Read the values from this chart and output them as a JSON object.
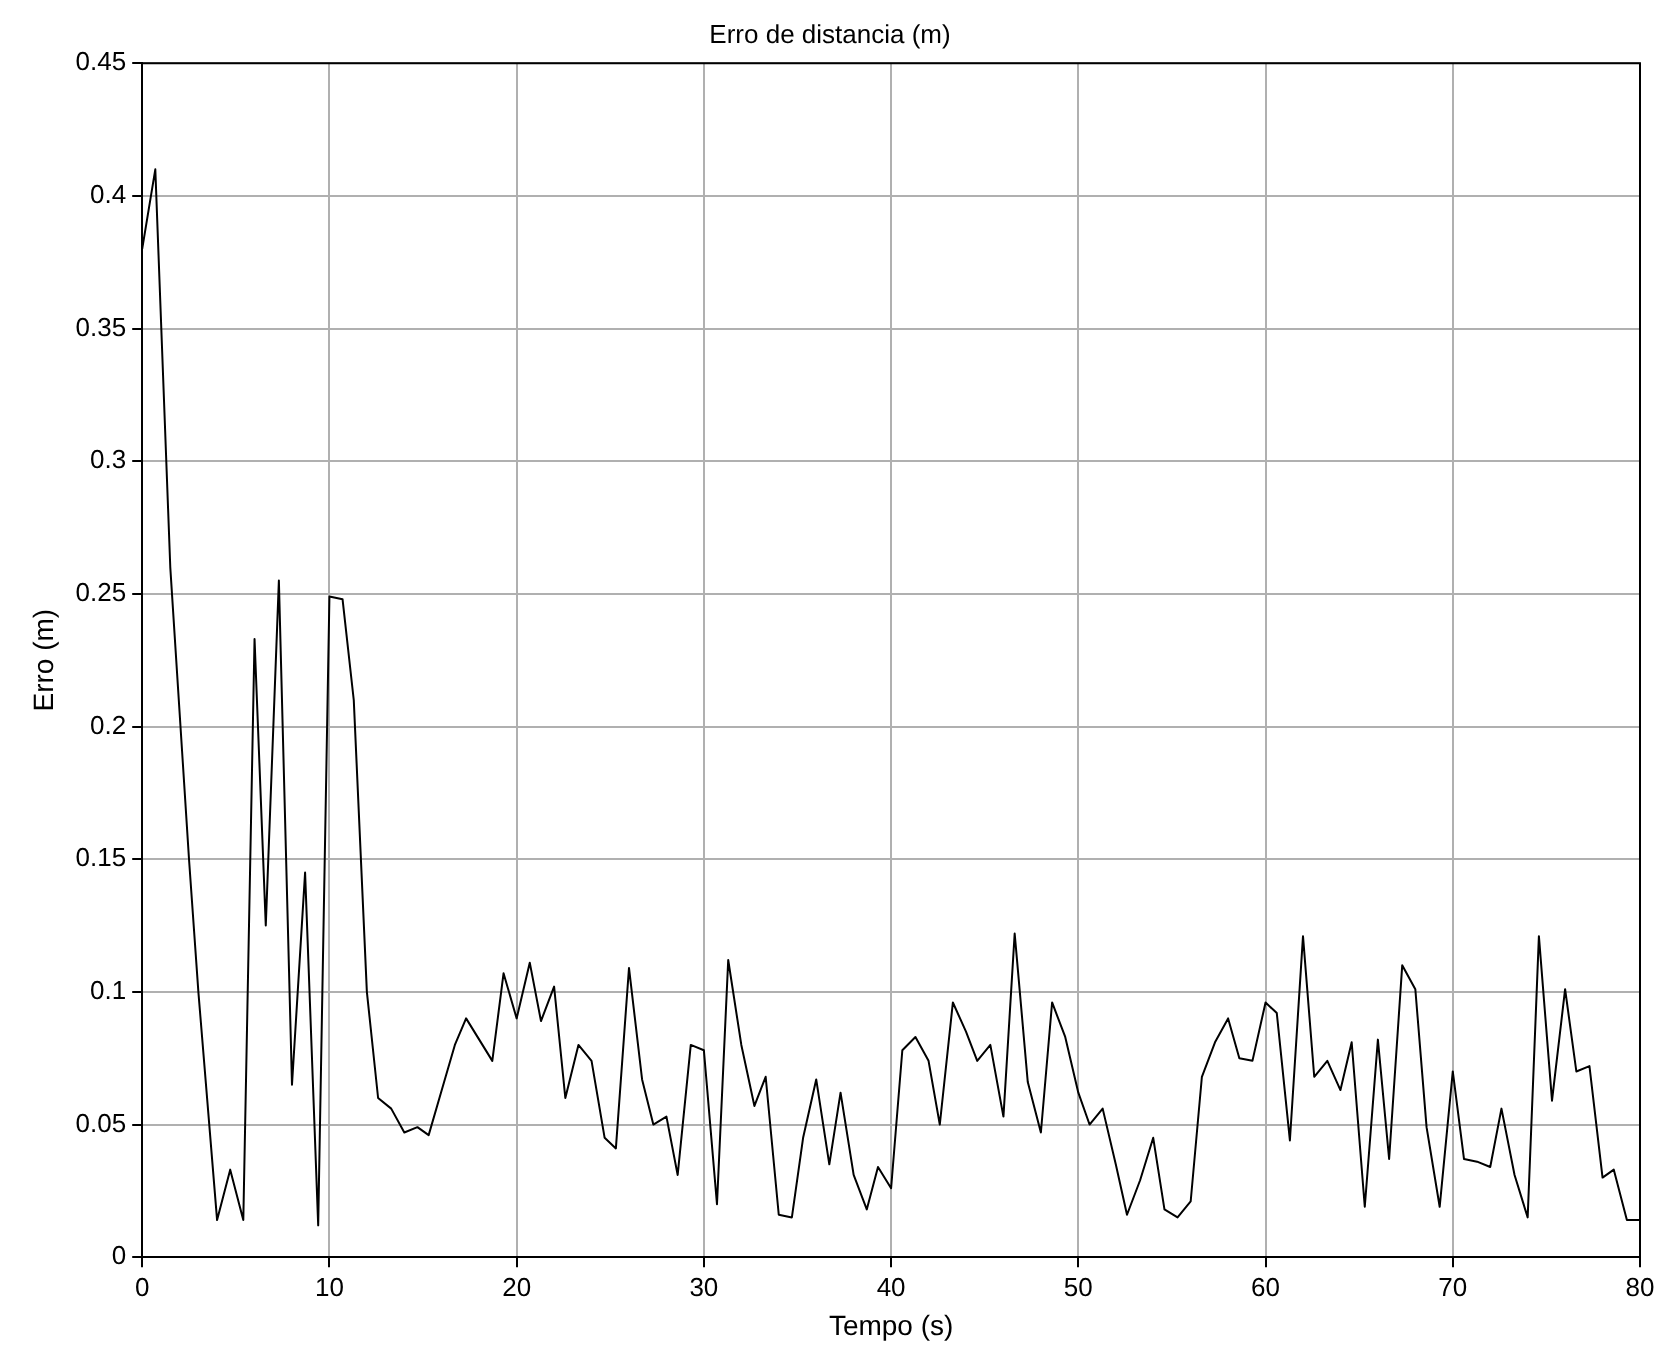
{
  "chart_data": {
    "type": "line",
    "title": "Erro de distancia (m)",
    "xlabel": "Tempo (s)",
    "ylabel": "Erro (m)",
    "series": [
      {
        "color": "#000000",
        "x": [
          0,
          0.7,
          1.5,
          2.5,
          3,
          4,
          4.7,
          5.4,
          6,
          6.6,
          7.3,
          8,
          8.7,
          9.4,
          10,
          10.7,
          11.3,
          12,
          12.6,
          13.3,
          14,
          14.7,
          15.3,
          16,
          16.7,
          17.3,
          18,
          18.7,
          19.3,
          20,
          20.7,
          21.3,
          22,
          22.6,
          23.3,
          24,
          24.7,
          25.3,
          26,
          26.7,
          27.3,
          28,
          28.6,
          29.3,
          30,
          30.7,
          31.3,
          32,
          32.7,
          33.3,
          34,
          34.7,
          35.3,
          36,
          36.7,
          37.3,
          38,
          38.7,
          39.3,
          40,
          40.6,
          41.3,
          42,
          42.6,
          43.3,
          44,
          44.6,
          45.3,
          46,
          46.6,
          47.3,
          48,
          48.6,
          49.3,
          50,
          50.6,
          51.3,
          52,
          52.6,
          53.3,
          54,
          54.6,
          55.3,
          56,
          56.6,
          57.3,
          58,
          58.6,
          59.3,
          60,
          60.6,
          61.3,
          62,
          62.6,
          63.3,
          64,
          64.6,
          65.3,
          66,
          66.6,
          67.3,
          68,
          68.6,
          69.3,
          70,
          70.6,
          71.3,
          72,
          72.6,
          73.3,
          74,
          74.6,
          75.3,
          76,
          76.6,
          77.3,
          78,
          78.6,
          79.3,
          80
        ],
        "values": [
          0.38,
          0.41,
          0.26,
          0.15,
          0.1,
          0.014,
          0.033,
          0.014,
          0.233,
          0.125,
          0.255,
          0.065,
          0.145,
          0.012,
          0.249,
          0.248,
          0.21,
          0.1,
          0.06,
          0.056,
          0.047,
          0.049,
          0.046,
          0.063,
          0.08,
          0.09,
          0.082,
          0.074,
          0.107,
          0.09,
          0.111,
          0.089,
          0.102,
          0.06,
          0.08,
          0.074,
          0.045,
          0.041,
          0.109,
          0.067,
          0.05,
          0.053,
          0.031,
          0.08,
          0.078,
          0.02,
          0.112,
          0.08,
          0.057,
          0.068,
          0.016,
          0.015,
          0.045,
          0.067,
          0.035,
          0.062,
          0.031,
          0.018,
          0.034,
          0.026,
          0.078,
          0.083,
          0.074,
          0.05,
          0.096,
          0.085,
          0.074,
          0.08,
          0.053,
          0.122,
          0.066,
          0.047,
          0.096,
          0.083,
          0.062,
          0.05,
          0.056,
          0.035,
          0.016,
          0.029,
          0.045,
          0.018,
          0.015,
          0.021,
          0.068,
          0.081,
          0.09,
          0.075,
          0.074,
          0.096,
          0.092,
          0.044,
          0.121,
          0.068,
          0.074,
          0.063,
          0.081,
          0.019,
          0.082,
          0.037,
          0.11,
          0.101,
          0.049,
          0.019,
          0.07,
          0.037,
          0.036,
          0.034,
          0.056,
          0.031,
          0.015,
          0.121,
          0.059,
          0.101,
          0.07,
          0.072,
          0.03,
          0.033,
          0.014,
          0.014
        ]
      }
    ],
    "xlim": [
      0,
      80
    ],
    "xticks": [
      0,
      10,
      20,
      30,
      40,
      50,
      60,
      70,
      80
    ],
    "ylim": [
      0,
      0.45
    ],
    "yticks": [
      0,
      0.05,
      0.1,
      0.15,
      0.2,
      0.25,
      0.3,
      0.35,
      0.4,
      0.45
    ],
    "grid": true,
    "legend": false,
    "marker": "none",
    "line_style": "solid"
  }
}
